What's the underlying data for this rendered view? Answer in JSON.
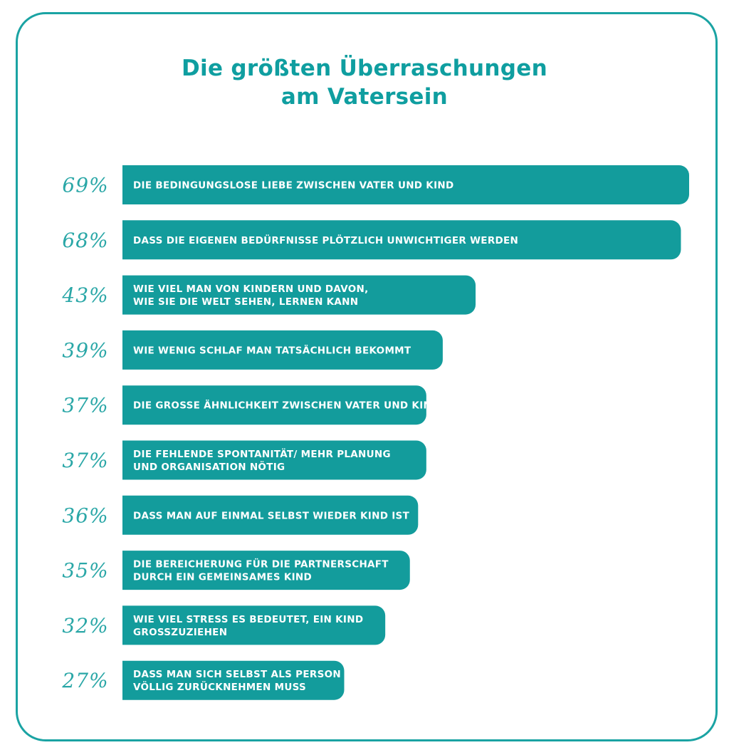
{
  "colors": {
    "accent": "#17a2a2",
    "bar": "#139c9c",
    "percent_text": "#2aa7a7",
    "title_text": "#0f9ea0",
    "bar_text": "#ffffff"
  },
  "header": {
    "title_line1": "Die größten Überraschungen",
    "title_line2": "am Vatersein"
  },
  "chart_data": {
    "type": "bar",
    "orientation": "horizontal",
    "title": "Die größten Überraschungen am Vatersein",
    "unit": "%",
    "xlim": [
      0,
      69
    ],
    "categories": [
      [
        "DIE BEDINGUNGSLOSE LIEBE ZWISCHEN VATER UND KIND"
      ],
      [
        "DASS DIE EIGENEN BEDÜRFNISSE PLÖTZLICH UNWICHTIGER WERDEN"
      ],
      [
        "WIE VIEL MAN VON KINDERN UND DAVON,",
        "WIE SIE DIE WELT SEHEN, LERNEN KANN"
      ],
      [
        "WIE WENIG SCHLAF MAN TATSÄCHLICH BEKOMMT"
      ],
      [
        "DIE GROSSE ÄHNLICHKEIT ZWISCHEN VATER UND KIND"
      ],
      [
        "DIE FEHLENDE SPONTANITÄT/ MEHR PLANUNG",
        "UND ORGANISATION NÖTIG"
      ],
      [
        "DASS MAN AUF EINMAL SELBST WIEDER KIND IST"
      ],
      [
        "DIE BEREICHERUNG FÜR DIE PARTNERSCHAFT",
        "DURCH EIN GEMEINSAMES KIND"
      ],
      [
        "WIE VIEL STRESS ES BEDEUTET, EIN KIND",
        "GROSSZUZIEHEN"
      ],
      [
        "DASS MAN SICH SELBST ALS PERSON",
        "VÖLLIG ZURÜCKNEHMEN MUSS"
      ]
    ],
    "values": [
      69,
      68,
      43,
      39,
      37,
      37,
      36,
      35,
      32,
      27
    ],
    "value_labels": [
      "69%",
      "68%",
      "43%",
      "39%",
      "37%",
      "37%",
      "36%",
      "35%",
      "32%",
      "27%"
    ]
  }
}
